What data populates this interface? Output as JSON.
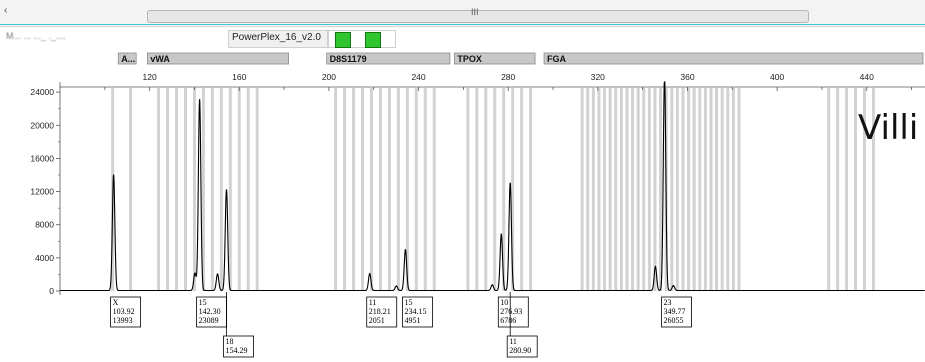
{
  "window": {
    "scroll_left_arrow": "‹",
    "scroll_grip": "III",
    "sample_name": "M...  ...  ..._ ._....",
    "panel_name": "PowerPlex_16_v2.0",
    "dye_swatch_count": 2,
    "dye_color": "#2fc52f",
    "accent_color": "#39c8d8"
  },
  "overlay_label": "Villi",
  "chart_data": {
    "type": "line",
    "title": "",
    "xlabel": "",
    "ylabel": "",
    "xlim": [
      80,
      466
    ],
    "ylim": [
      0,
      24500
    ],
    "x_ticks": [
      120,
      160,
      200,
      240,
      280,
      320,
      360,
      400,
      440
    ],
    "y_ticks": [
      0,
      4000,
      8000,
      12000,
      16000,
      20000,
      24000
    ],
    "grid": false,
    "legend": "none",
    "line_color": "#000000",
    "bin_color": "#d2d2d2",
    "markers": [
      {
        "name": "A...",
        "start": 106,
        "end": 114
      },
      {
        "name": "vWA",
        "start": 119,
        "end": 182
      },
      {
        "name": "D8S1179",
        "start": 199,
        "end": 254
      },
      {
        "name": "TPOX",
        "start": 256,
        "end": 292
      },
      {
        "name": "FGA",
        "start": 296,
        "end": 466
      }
    ],
    "bins": [
      103.5,
      111.5,
      124,
      128,
      132,
      136,
      140,
      144,
      148,
      152,
      156,
      160,
      164,
      168,
      203,
      207,
      211,
      215,
      219,
      223,
      227,
      231,
      235,
      239,
      243,
      247,
      262,
      266,
      270,
      274,
      278,
      282,
      286,
      290,
      313,
      315.5,
      318,
      320.5,
      323,
      325.5,
      328,
      330.5,
      333,
      335.5,
      338,
      340.5,
      343,
      345.5,
      348,
      350.5,
      353,
      355.5,
      358,
      360.5,
      363,
      365.5,
      368,
      370.5,
      373,
      375.5,
      378,
      380.5,
      383,
      423,
      427,
      431,
      435,
      439,
      443
    ],
    "peaks": [
      {
        "x": 103.92,
        "y": 13993
      },
      {
        "x": 140.2,
        "y": 2100
      },
      {
        "x": 142.3,
        "y": 23089
      },
      {
        "x": 150.3,
        "y": 2000
      },
      {
        "x": 154.29,
        "y": 12200
      },
      {
        "x": 218.21,
        "y": 2051
      },
      {
        "x": 230.1,
        "y": 550
      },
      {
        "x": 234.15,
        "y": 4951
      },
      {
        "x": 272.9,
        "y": 700
      },
      {
        "x": 276.93,
        "y": 6786
      },
      {
        "x": 280.9,
        "y": 13000
      },
      {
        "x": 345.7,
        "y": 2900
      },
      {
        "x": 349.77,
        "y": 26055
      },
      {
        "x": 353.7,
        "y": 600
      }
    ],
    "allele_labels": [
      {
        "x": 103.92,
        "row": 0,
        "lines": [
          "X",
          "103.92",
          "13993"
        ]
      },
      {
        "x": 142.3,
        "row": 0,
        "lines": [
          "15",
          "142.30",
          "23089"
        ]
      },
      {
        "x": 154.29,
        "row": 1,
        "lines": [
          "18",
          "154.29"
        ]
      },
      {
        "x": 218.21,
        "row": 0,
        "lines": [
          "11",
          "218.21",
          "2051"
        ]
      },
      {
        "x": 234.15,
        "row": 0,
        "lines": [
          "15",
          "234.15",
          "4951"
        ]
      },
      {
        "x": 276.93,
        "row": 0,
        "lines": [
          "10",
          "276.93",
          "6786"
        ]
      },
      {
        "x": 280.9,
        "row": 1,
        "lines": [
          "11",
          "280.90"
        ]
      },
      {
        "x": 349.77,
        "row": 0,
        "lines": [
          "23",
          "349.77",
          "26055"
        ]
      }
    ]
  }
}
